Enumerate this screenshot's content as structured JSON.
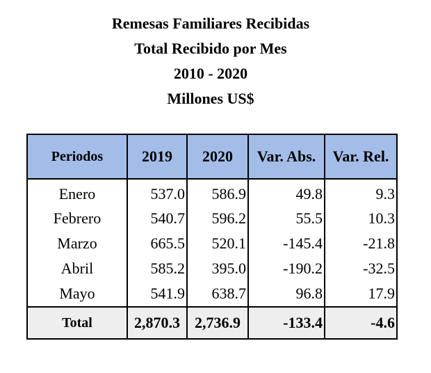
{
  "titles": [
    "Remesas Familiares Recibidas",
    "Total Recibido por Mes",
    "2010 - 2020",
    "Millones US$"
  ],
  "table": {
    "headers": [
      "Periodos",
      "2019",
      "2020",
      "Var. Abs.",
      "Var. Rel."
    ],
    "rows": [
      [
        "Enero",
        "537.0",
        "586.9",
        "49.8",
        "9.3"
      ],
      [
        "Febrero",
        "540.7",
        "596.2",
        "55.5",
        "10.3"
      ],
      [
        "Marzo",
        "665.5",
        "520.1",
        "-145.4",
        "-21.8"
      ],
      [
        "Abril",
        "585.2",
        "395.0",
        "-190.2",
        "-32.5"
      ],
      [
        "Mayo",
        "541.9",
        "638.7",
        "96.8",
        "17.9"
      ]
    ],
    "total": [
      "Total",
      "2,870.3",
      "2,736.9",
      "-133.4",
      "-4.6"
    ]
  },
  "colors": {
    "header_bg": "#a4bde8",
    "total_bg": "#eeeeee",
    "border": "#000000"
  }
}
